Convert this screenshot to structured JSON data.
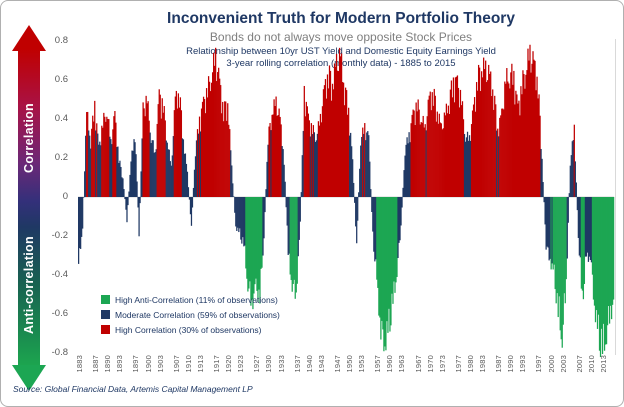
{
  "header": {
    "title": "Inconvenient Truth for Modern Portfolio Theory",
    "subtitle": "Bonds do not always move opposite Stock Prices",
    "subtitle2": "Relationship between 10yr UST Yield and Domestic Equity Earnings Yield",
    "subtitle3": "3-year rolling correlation (monthly data) - 1885 to 2015"
  },
  "axis_arrow": {
    "top_label": "Correlation",
    "bottom_label": "Anti-correlation",
    "top_color": "#C00000",
    "bottom_color": "#1CA653"
  },
  "legend": [
    {
      "label": "High Anti-Correlation (11% of observations)",
      "color": "#1CA653"
    },
    {
      "label": "Moderate Correlation (59% of observations)",
      "color": "#1F3864"
    },
    {
      "label": "High Correlation (30% of observations)",
      "color": "#C00000"
    }
  ],
  "source": "Source: Global Financial Data, Artemis Capital Management LP",
  "chart_data": {
    "type": "bar",
    "title": "Inconvenient Truth for Modern Portfolio Theory",
    "xlabel": "",
    "ylabel": "3-year rolling correlation",
    "ylim": [
      -0.8,
      0.8
    ],
    "grid": false,
    "legend_position": "inside-lower-left",
    "y_tick_labels": [
      "0.8",
      "0.6",
      "0.4",
      "0.2",
      "0",
      "-0.2",
      "-0.4",
      "-0.6",
      "-0.8"
    ],
    "y_tick_values": [
      0.8,
      0.6,
      0.4,
      0.2,
      0,
      -0.2,
      -0.4,
      -0.6,
      -0.8
    ],
    "x_tick_labels": [
      1883,
      1887,
      1890,
      1893,
      1897,
      1900,
      1903,
      1907,
      1910,
      1913,
      1917,
      1920,
      1923,
      1927,
      1930,
      1933,
      1937,
      1940,
      1943,
      1947,
      1950,
      1953,
      1957,
      1960,
      1963,
      1967,
      1970,
      1973,
      1977,
      1980,
      1983,
      1987,
      1990,
      1993,
      1997,
      2000,
      2003,
      2007,
      2010,
      2013
    ],
    "series_start_year": 1883,
    "series_end_year": 2015,
    "annual_correlation": [
      -0.35,
      -0.15,
      0.44,
      0.3,
      0.48,
      0.25,
      0.38,
      0.46,
      0.28,
      0.42,
      0.2,
      0.1,
      -0.12,
      0.18,
      0.35,
      -0.2,
      0.45,
      0.5,
      0.32,
      0.22,
      0.52,
      0.48,
      0.3,
      0.15,
      0.5,
      0.55,
      0.3,
      0.12,
      -0.15,
      0.25,
      0.4,
      0.48,
      0.55,
      0.65,
      0.72,
      0.58,
      0.45,
      0.5,
      0.15,
      -0.15,
      -0.2,
      -0.25,
      -0.45,
      -0.55,
      -0.48,
      -0.52,
      -0.2,
      0.3,
      0.45,
      0.48,
      0.4,
      0.2,
      -0.3,
      -0.45,
      -0.5,
      -0.15,
      0.55,
      0.4,
      0.35,
      0.32,
      0.4,
      0.55,
      0.65,
      0.6,
      0.68,
      0.72,
      0.58,
      0.45,
      0.18,
      -0.25,
      0.3,
      0.36,
      0.3,
      -0.2,
      -0.45,
      -0.68,
      -0.75,
      -0.7,
      -0.55,
      -0.38,
      -0.15,
      0.25,
      0.32,
      0.42,
      0.48,
      0.42,
      0.35,
      0.5,
      0.55,
      0.45,
      0.35,
      0.42,
      0.52,
      0.6,
      0.58,
      0.5,
      0.32,
      0.3,
      0.45,
      0.62,
      0.68,
      0.65,
      0.62,
      0.55,
      0.35,
      0.42,
      0.6,
      0.65,
      0.62,
      0.45,
      0.58,
      0.68,
      0.73,
      0.68,
      0.6,
      0.2,
      -0.25,
      -0.32,
      -0.42,
      -0.6,
      -0.72,
      -0.45,
      0.18,
      0.35,
      -0.2,
      -0.55,
      -0.32,
      -0.3,
      -0.55,
      -0.75,
      -0.8,
      -0.7,
      -0.58
    ],
    "color_thresholds": {
      "high_correlation_min": 0.345,
      "high_anti_correlation_max": -0.345
    },
    "colors": {
      "high_correlation": "#C00000",
      "moderate_correlation": "#1F3864",
      "high_anti_correlation": "#1CA653"
    }
  }
}
